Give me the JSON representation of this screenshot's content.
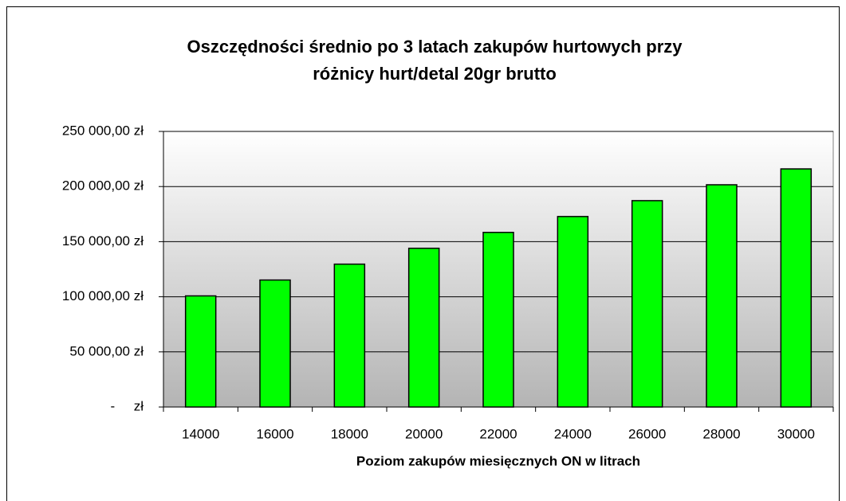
{
  "chart_data": {
    "type": "bar",
    "title": [
      "Oszczędności średnio po 3 latach zakupów hurtowych przy",
      "różnicy hurt/detal 20gr brutto"
    ],
    "x_label": "Poziom zakupów miesięcznych ON w litrach",
    "categories": [
      "14000",
      "16000",
      "18000",
      "20000",
      "22000",
      "24000",
      "26000",
      "28000",
      "30000"
    ],
    "values": [
      100800,
      115200,
      129600,
      144000,
      158400,
      172800,
      187200,
      201600,
      216000
    ],
    "color": "#00ff00",
    "ylim": [
      0,
      250000
    ],
    "yticks": [
      {
        "value": 0,
        "label": "-     zł"
      },
      {
        "value": 50000,
        "label": "50 000,00 zł"
      },
      {
        "value": 100000,
        "label": "100 000,00 zł"
      },
      {
        "value": 150000,
        "label": "150 000,00 zł"
      },
      {
        "value": 200000,
        "label": "200 000,00 zł"
      },
      {
        "value": 250000,
        "label": "250 000,00 zł"
      }
    ],
    "grid": true
  }
}
